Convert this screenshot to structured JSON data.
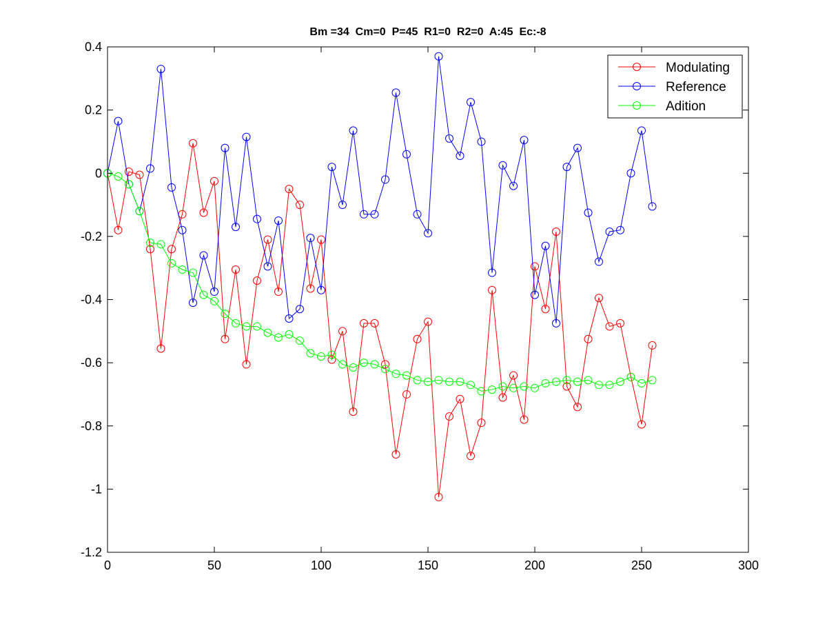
{
  "chart_data": {
    "type": "line",
    "title": "Bm =34  Cm=0  P=45  R1=0  R2=0  A:45  Ec:-8",
    "xlabel": "",
    "ylabel": "",
    "xlim": [
      0,
      300
    ],
    "ylim": [
      -1.2,
      0.4
    ],
    "xticks": [
      0,
      50,
      100,
      150,
      200,
      250,
      300
    ],
    "yticks": [
      -1.2,
      -1,
      -0.8,
      -0.6,
      -0.4,
      -0.2,
      0,
      0.2,
      0.4
    ],
    "xtick_labels": [
      "0",
      "50",
      "100",
      "150",
      "200",
      "250",
      "300"
    ],
    "ytick_labels": [
      "-1.2",
      "-1",
      "-0.8",
      "-0.6",
      "-0.4",
      "-0.2",
      "0",
      "0.2",
      "0.4"
    ],
    "grid": false,
    "legend_position": "top-right",
    "marker": "circle",
    "x": [
      0,
      5,
      10,
      15,
      20,
      25,
      30,
      35,
      40,
      45,
      50,
      55,
      60,
      65,
      70,
      75,
      80,
      85,
      90,
      95,
      100,
      105,
      110,
      115,
      120,
      125,
      130,
      135,
      140,
      145,
      150,
      155,
      160,
      165,
      170,
      175,
      180,
      185,
      190,
      195,
      200,
      205,
      210,
      215,
      220,
      225,
      230,
      235,
      240,
      245,
      250,
      255
    ],
    "series": [
      {
        "name": "Modulating",
        "color": "#ff0000",
        "values": [
          0,
          -0.18,
          0.005,
          -0.005,
          -0.24,
          -0.555,
          -0.24,
          -0.13,
          0.095,
          -0.125,
          -0.025,
          -0.525,
          -0.305,
          -0.605,
          -0.34,
          -0.21,
          -0.375,
          -0.05,
          -0.1,
          -0.365,
          -0.21,
          -0.59,
          -0.5,
          -0.755,
          -0.475,
          -0.475,
          -0.605,
          -0.89,
          -0.7,
          -0.525,
          -0.47,
          -1.025,
          -0.77,
          -0.715,
          -0.895,
          -0.79,
          -0.37,
          -0.71,
          -0.64,
          -0.78,
          -0.295,
          -0.43,
          -0.185,
          -0.675,
          -0.74,
          -0.525,
          -0.395,
          -0.485,
          -0.475,
          -0.645,
          -0.795,
          -0.545
        ]
      },
      {
        "name": "Reference",
        "color": "#0000ff",
        "values": [
          0,
          0.165,
          -0.035,
          -0.12,
          0.015,
          0.33,
          -0.045,
          -0.18,
          -0.41,
          -0.26,
          -0.375,
          0.08,
          -0.17,
          0.115,
          -0.145,
          -0.295,
          -0.15,
          -0.46,
          -0.43,
          -0.205,
          -0.37,
          0.02,
          -0.1,
          0.135,
          -0.13,
          -0.13,
          -0.02,
          0.255,
          0.06,
          -0.13,
          -0.19,
          0.37,
          0.11,
          0.055,
          0.225,
          0.1,
          -0.315,
          0.025,
          -0.04,
          0.105,
          -0.385,
          -0.23,
          -0.475,
          0.02,
          0.08,
          -0.125,
          -0.28,
          -0.185,
          -0.18,
          0.0,
          0.135,
          -0.105
        ]
      },
      {
        "name": "Adition",
        "color": "#00ff00",
        "values": [
          0,
          -0.01,
          -0.035,
          -0.12,
          -0.22,
          -0.225,
          -0.285,
          -0.305,
          -0.315,
          -0.385,
          -0.405,
          -0.445,
          -0.475,
          -0.485,
          -0.485,
          -0.505,
          -0.52,
          -0.51,
          -0.53,
          -0.57,
          -0.58,
          -0.575,
          -0.605,
          -0.615,
          -0.6,
          -0.605,
          -0.62,
          -0.635,
          -0.64,
          -0.655,
          -0.66,
          -0.655,
          -0.66,
          -0.66,
          -0.67,
          -0.69,
          -0.685,
          -0.675,
          -0.68,
          -0.675,
          -0.68,
          -0.665,
          -0.66,
          -0.655,
          -0.66,
          -0.655,
          -0.67,
          -0.67,
          -0.66,
          -0.645,
          -0.665,
          -0.655
        ]
      }
    ]
  }
}
